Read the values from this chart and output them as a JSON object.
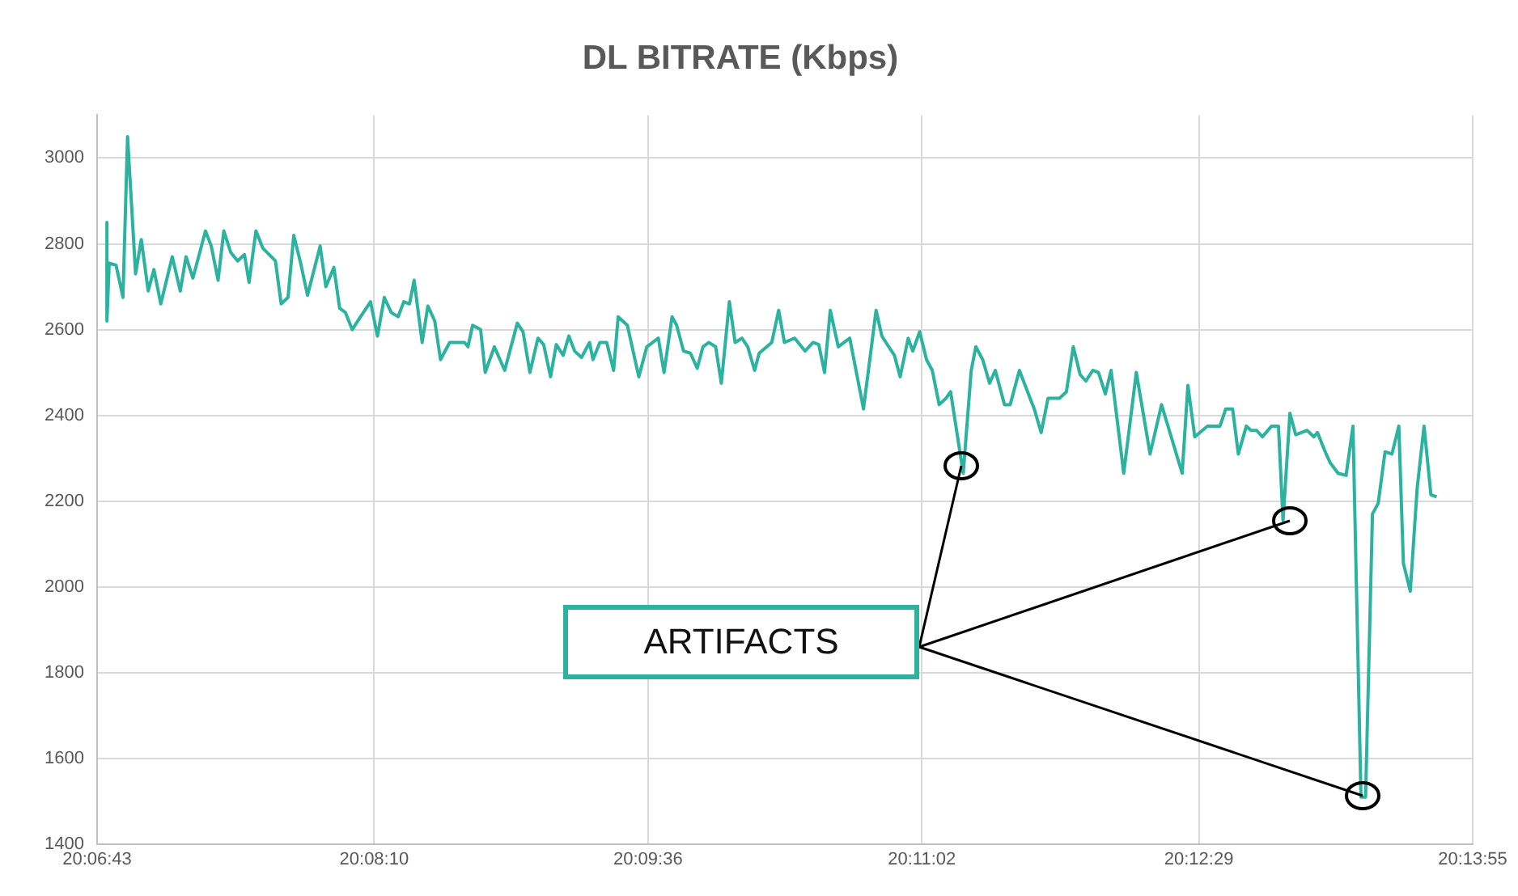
{
  "chart_data": {
    "type": "line",
    "title": "DL BITRATE (Kbps)",
    "x": [
      20.1128,
      20.1128,
      20.113,
      20.1136,
      20.1142,
      20.1146,
      20.1153,
      20.1158,
      20.1164,
      20.1169,
      20.1175,
      20.1185,
      20.1192,
      20.1197,
      20.1203,
      20.1214,
      20.1219,
      20.1225,
      20.123,
      20.1236,
      20.1242,
      20.1248,
      20.1252,
      20.1258,
      20.1264,
      20.1275,
      20.128,
      20.1286,
      20.1291,
      20.1297,
      20.1303,
      20.1314,
      20.1319,
      20.1326,
      20.1331,
      20.1336,
      20.1342,
      20.1348,
      20.1358,
      20.1364,
      20.137,
      20.1376,
      20.1382,
      20.1387,
      20.1392,
      20.1396,
      20.1403,
      20.1408,
      20.1414,
      20.1419,
      20.1427,
      20.144,
      20.1443,
      20.1447,
      20.1454,
      20.1458,
      20.1466,
      20.1475,
      20.1486,
      20.1491,
      20.1497,
      20.1504,
      20.1509,
      20.1515,
      20.152,
      20.1526,
      20.1531,
      20.1536,
      20.1542,
      20.1549,
      20.1552,
      20.1558,
      20.1564,
      20.157,
      20.1574,
      20.1582,
      20.1592,
      20.1599,
      20.1609,
      20.1614,
      20.1621,
      20.1625,
      20.1631,
      20.1637,
      20.1643,
      20.1648,
      20.1653,
      20.1659,
      20.1664,
      20.1671,
      20.1676,
      20.1682,
      20.1687,
      20.1693,
      20.1697,
      20.1708,
      20.1714,
      20.1719,
      20.1728,
      20.1737,
      20.1744,
      20.1749,
      20.1754,
      20.1759,
      20.1766,
      20.1776,
      20.1788,
      20.1799,
      20.1804,
      20.181,
      20.1815,
      20.182,
      20.1827,
      20.1831,
      20.1837,
      20.1843,
      20.1848,
      20.1854,
      20.186,
      20.1864,
      20.1875,
      20.1882,
      20.1886,
      20.1892,
      20.1898,
      20.1903,
      20.1911,
      20.1916,
      20.1924,
      20.1934,
      20.1937,
      20.1943,
      20.1949,
      20.1959,
      20.1965,
      20.1971,
      20.1977,
      20.1982,
      20.1988,
      20.1993,
      20.1999,
      20.2004,
      20.2015,
      20.2026,
      20.2038,
      20.2048,
      20.2066,
      20.2071,
      20.2077,
      20.2088,
      20.2099,
      20.2104,
      20.211,
      20.2115,
      20.2122,
      20.2126,
      20.2131,
      20.2136,
      20.2144,
      20.215,
      20.2154,
      20.216,
      20.2165,
      20.2175,
      20.2181,
      20.2184,
      20.219,
      20.2195,
      20.2202,
      20.2209,
      20.2215,
      20.2222,
      20.2226,
      20.2232,
      20.2237,
      20.2243,
      20.2249,
      20.2255,
      20.2259,
      20.2265,
      20.2271,
      20.2277,
      20.2283,
      20.2288
    ],
    "series": [
      {
        "color": "#2bb3a0",
        "values": [
          2850,
          2620,
          2755,
          2750,
          2675,
          3050,
          2730,
          2810,
          2690,
          2740,
          2660,
          2770,
          2690,
          2770,
          2720,
          2830,
          2795,
          2715,
          2830,
          2780,
          2760,
          2775,
          2710,
          2830,
          2790,
          2760,
          2660,
          2675,
          2820,
          2755,
          2680,
          2795,
          2700,
          2745,
          2650,
          2640,
          2600,
          2625,
          2665,
          2585,
          2675,
          2640,
          2630,
          2665,
          2660,
          2715,
          2570,
          2655,
          2620,
          2530,
          2570,
          2570,
          2560,
          2610,
          2600,
          2500,
          2560,
          2505,
          2615,
          2595,
          2500,
          2580,
          2565,
          2490,
          2565,
          2540,
          2585,
          2550,
          2535,
          2570,
          2530,
          2570,
          2570,
          2505,
          2630,
          2610,
          2490,
          2560,
          2580,
          2500,
          2630,
          2610,
          2550,
          2545,
          2510,
          2560,
          2570,
          2560,
          2475,
          2665,
          2570,
          2580,
          2560,
          2505,
          2545,
          2570,
          2645,
          2570,
          2580,
          2550,
          2570,
          2565,
          2500,
          2645,
          2560,
          2580,
          2415,
          2645,
          2585,
          2560,
          2540,
          2490,
          2580,
          2550,
          2595,
          2530,
          2505,
          2425,
          2440,
          2455,
          2265,
          2505,
          2560,
          2530,
          2475,
          2505,
          2425,
          2425,
          2505,
          2435,
          2415,
          2360,
          2440,
          2440,
          2455,
          2560,
          2495,
          2480,
          2505,
          2500,
          2450,
          2505,
          2265,
          2500,
          2310,
          2425,
          2265,
          2470,
          2350,
          2375,
          2375,
          2415,
          2415,
          2310,
          2375,
          2365,
          2365,
          2350,
          2375,
          2375,
          2155,
          2405,
          2355,
          2365,
          2350,
          2360,
          2320,
          2290,
          2265,
          2260,
          2375,
          1510,
          1510,
          2170,
          2195,
          2315,
          2310,
          2375,
          2055,
          1990,
          2230,
          2375,
          2215,
          2210
        ]
      }
    ],
    "xlim": [
      20.111944,
      20.231944
    ],
    "xticks": [
      {
        "value": 20.111944,
        "label": "20:06:43"
      },
      {
        "value": 20.136111,
        "label": "20:08:10"
      },
      {
        "value": 20.16,
        "label": "20:09:36"
      },
      {
        "value": 20.183889,
        "label": "20:11:02"
      },
      {
        "value": 20.208056,
        "label": "20:12:29"
      },
      {
        "value": 20.231944,
        "label": "20:13:55"
      }
    ],
    "ylim": [
      1400,
      3100
    ],
    "yticks": [
      1400,
      1600,
      1800,
      2000,
      2200,
      2400,
      2600,
      2800,
      3000
    ],
    "grid": true,
    "legend": false,
    "marker": "none",
    "line_style": "solid",
    "annotations": [
      "ARTIFACTS"
    ]
  }
}
